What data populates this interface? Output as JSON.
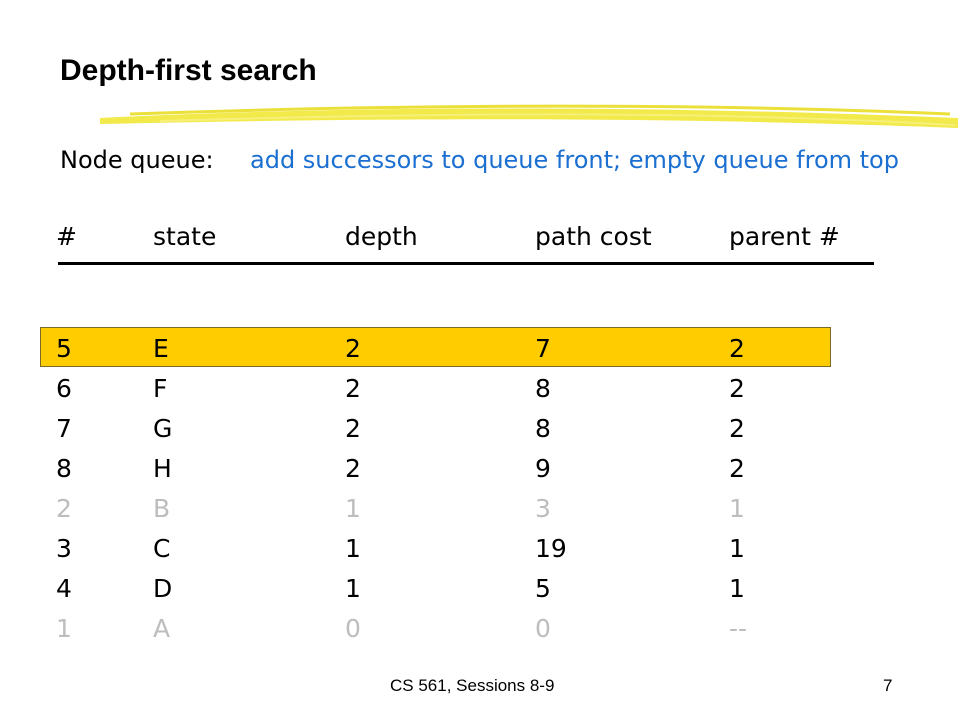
{
  "slide": {
    "title": "Depth-first search",
    "queue_label": "Node queue:",
    "queue_note": "add successors to queue front; empty queue from top",
    "footer": "CS 561,  Sessions 8-9",
    "page_number": "7"
  },
  "table": {
    "headers": [
      "#",
      "state",
      "depth",
      "path cost",
      "parent #"
    ],
    "rows": [
      {
        "num": "5",
        "state": "E",
        "depth": "2",
        "cost": "7",
        "parent": "2",
        "status": "highlighted"
      },
      {
        "num": "6",
        "state": "F",
        "depth": "2",
        "cost": "8",
        "parent": "2",
        "status": "normal"
      },
      {
        "num": "7",
        "state": "G",
        "depth": "2",
        "cost": "8",
        "parent": "2",
        "status": "normal"
      },
      {
        "num": "8",
        "state": "H",
        "depth": "2",
        "cost": "9",
        "parent": "2",
        "status": "normal"
      },
      {
        "num": "2",
        "state": "B",
        "depth": "1",
        "cost": "3",
        "parent": "1",
        "status": "dimmed"
      },
      {
        "num": "3",
        "state": "C",
        "depth": "1",
        "cost": "19",
        "parent": "1",
        "status": "normal"
      },
      {
        "num": "4",
        "state": "D",
        "depth": "1",
        "cost": "5",
        "parent": "1",
        "status": "normal"
      },
      {
        "num": "1",
        "state": "A",
        "depth": "0",
        "cost": "0",
        "parent": "--",
        "status": "dimmed"
      }
    ]
  },
  "colors": {
    "accent_blue": "#1a6fd1",
    "highlight_fill": "#ffcc00",
    "dimmed_text": "#bdbdbd",
    "brush_stroke": "#f2e94a"
  }
}
